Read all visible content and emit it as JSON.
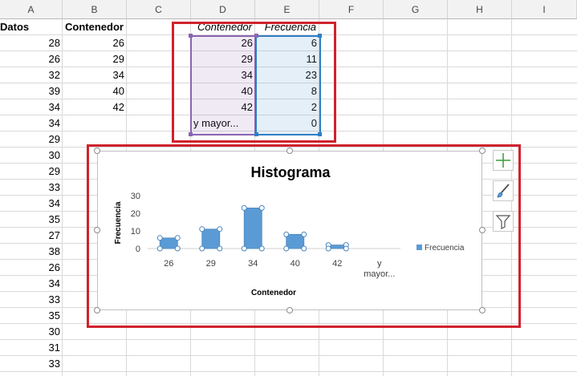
{
  "columns": [
    "A",
    "B",
    "C",
    "D",
    "E",
    "F",
    "G",
    "H",
    "I"
  ],
  "colA": [
    "Datos",
    "28",
    "26",
    "32",
    "39",
    "34",
    "34",
    "29",
    "30",
    "29",
    "33",
    "34",
    "35",
    "27",
    "38",
    "26",
    "34",
    "33",
    "35",
    "30",
    "31",
    "33"
  ],
  "colB": [
    "Contenedor",
    "26",
    "29",
    "34",
    "40",
    "42"
  ],
  "table": {
    "header": [
      "Contenedor",
      "Frecuencia"
    ],
    "rows": [
      [
        "26",
        "6"
      ],
      [
        "29",
        "11"
      ],
      [
        "34",
        "23"
      ],
      [
        "40",
        "8"
      ],
      [
        "42",
        "2"
      ],
      [
        "y mayor...",
        "0"
      ]
    ]
  },
  "chart": {
    "title": "Histograma",
    "xlabel": "Contenedor",
    "ylabel": "Frecuencia",
    "legend": "Frecuencia",
    "y_ticks": [
      "30",
      "20",
      "10",
      "0"
    ],
    "x_ticks": [
      "26",
      "29",
      "34",
      "40",
      "42",
      "y\nmayor..."
    ],
    "colors": {
      "bar": "#5b9bd5",
      "selection": "#d0222d"
    }
  },
  "chart_data": {
    "type": "bar",
    "categories": [
      "26",
      "29",
      "34",
      "40",
      "42",
      "y mayor..."
    ],
    "series": [
      {
        "name": "Frecuencia",
        "values": [
          6,
          11,
          23,
          8,
          2,
          0
        ]
      }
    ],
    "title": "Histograma",
    "xlabel": "Contenedor",
    "ylabel": "Frecuencia",
    "ylim": [
      0,
      30
    ],
    "legend": "right",
    "grid": false
  },
  "side_buttons": [
    "chart-elements-icon",
    "chart-styles-brush-icon",
    "chart-filter-icon"
  ]
}
